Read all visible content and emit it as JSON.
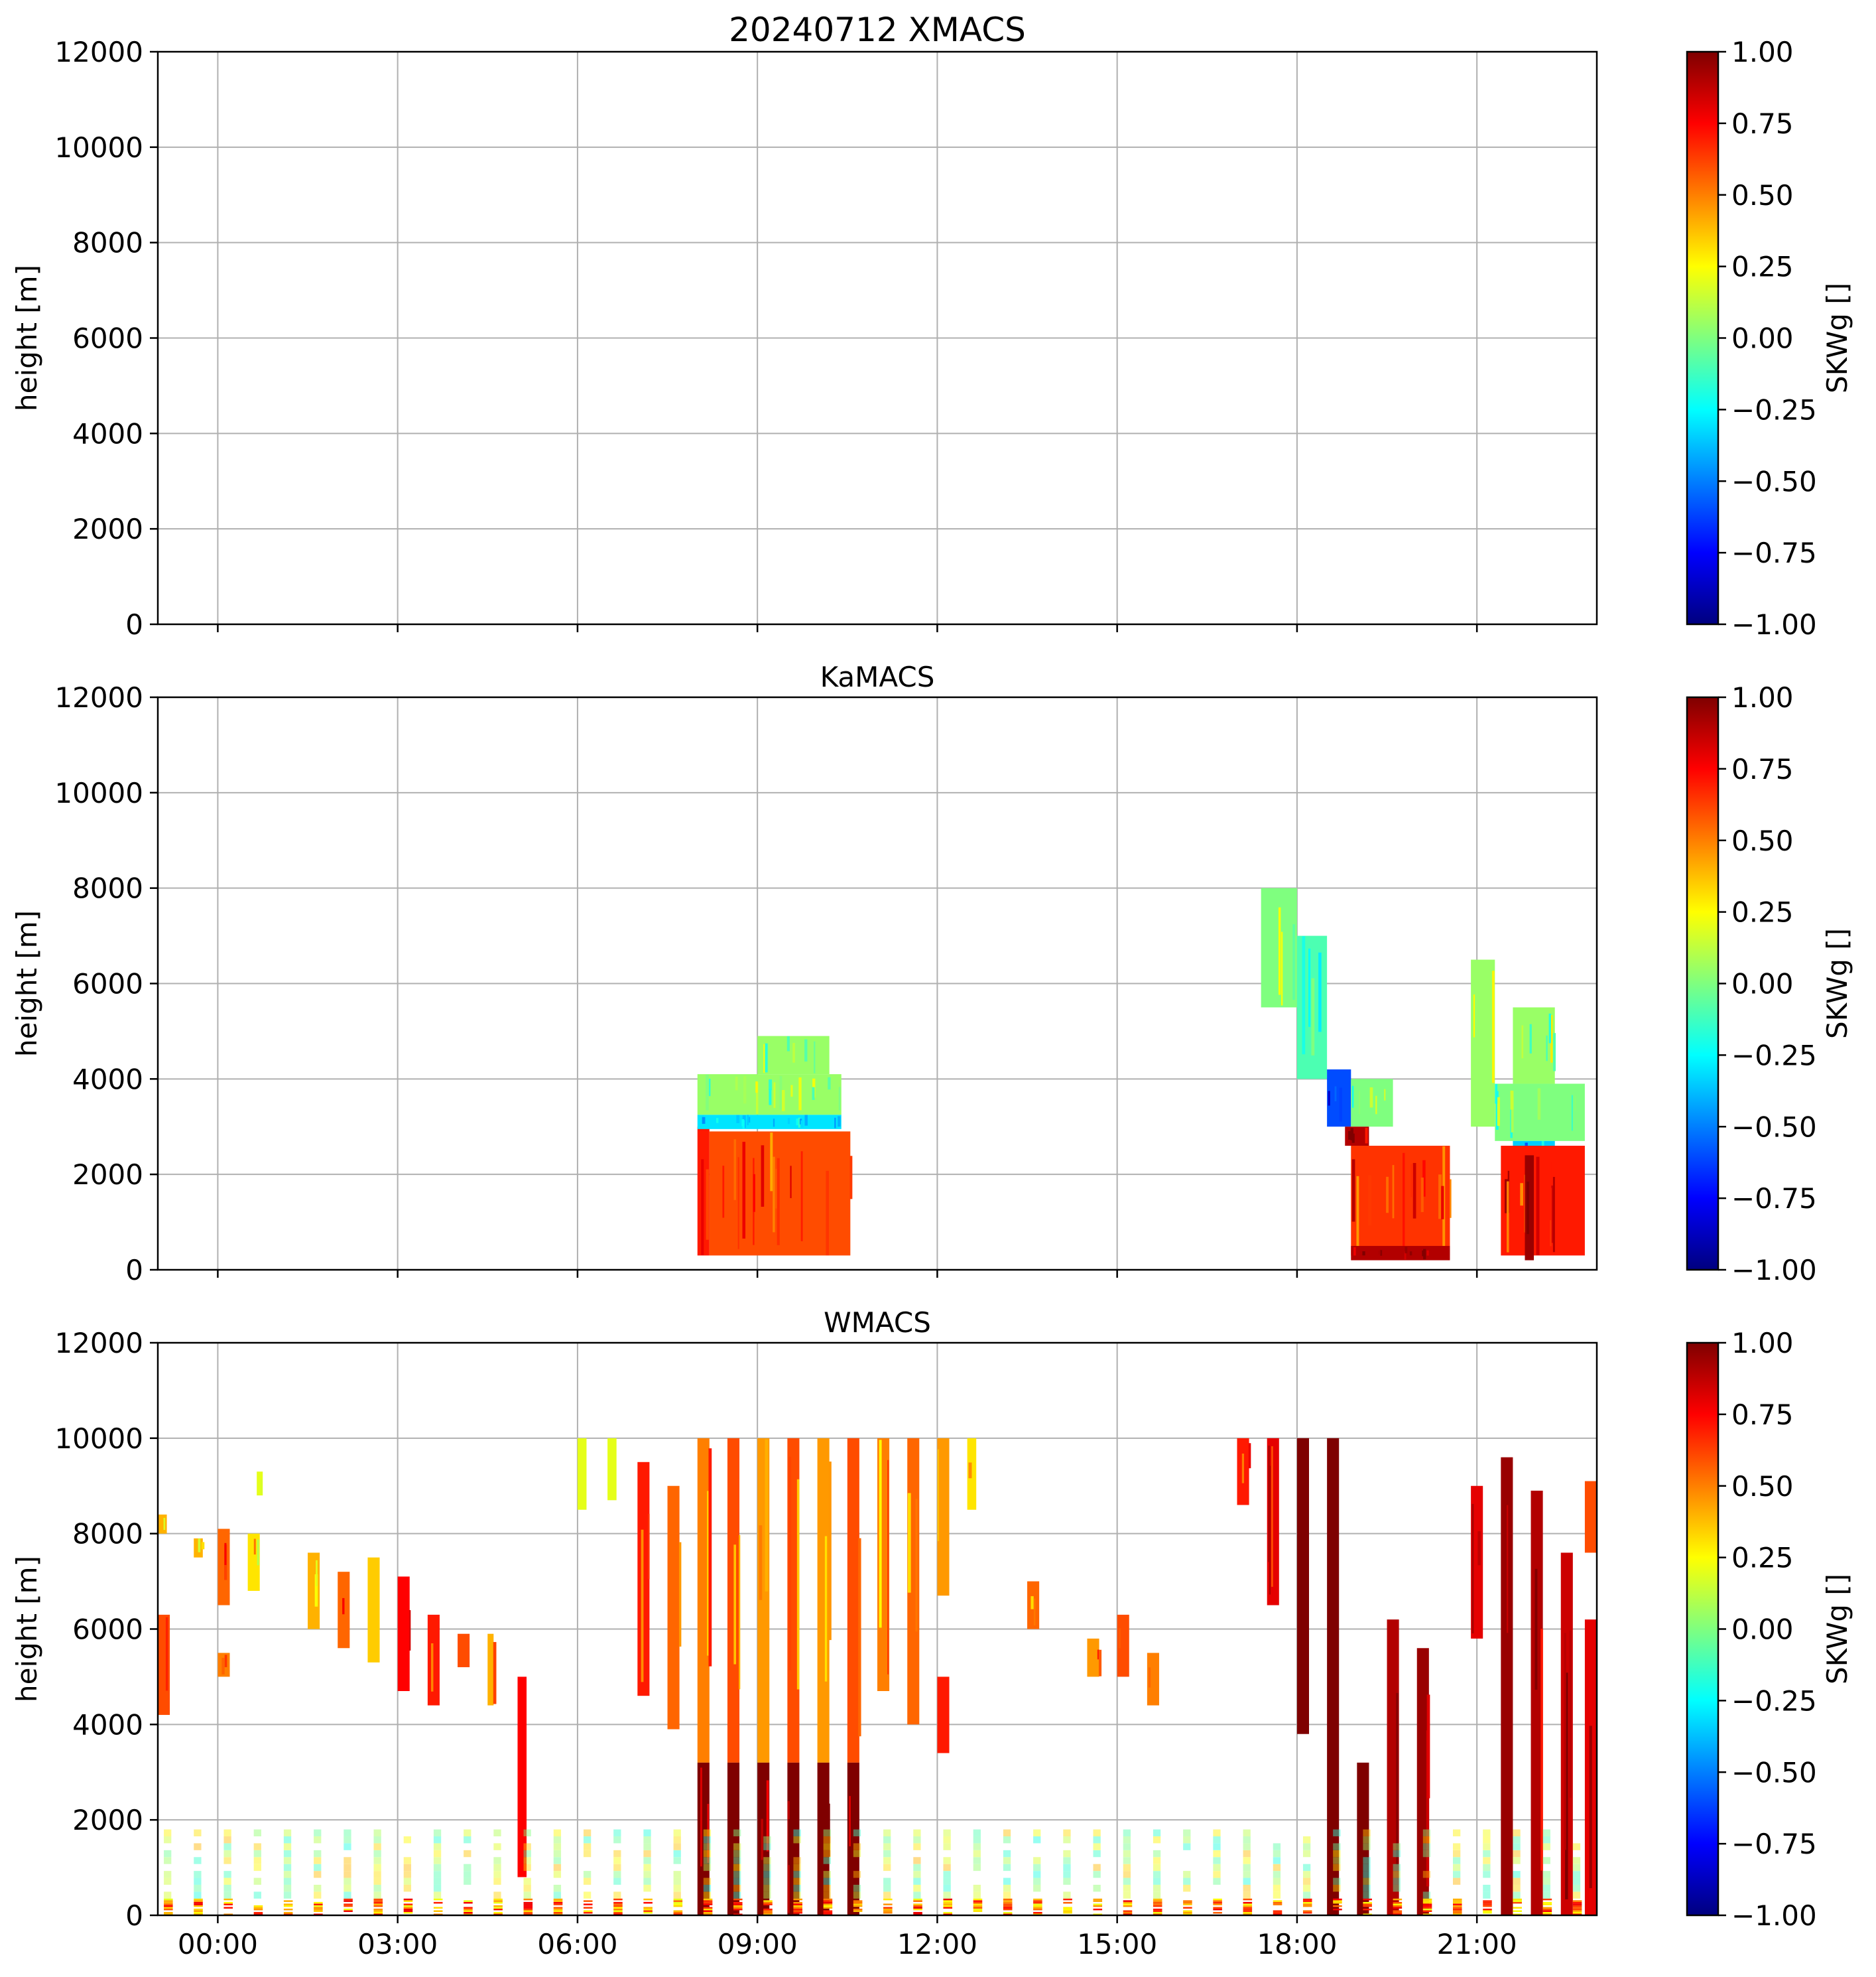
{
  "figure": {
    "title": "20240712 XMACS"
  },
  "colormap": {
    "name": "jet",
    "stops": [
      "#00007f",
      "#0000ff",
      "#007fff",
      "#00ffff",
      "#7fff7f",
      "#ffff00",
      "#ff7f00",
      "#ff0000",
      "#7f0000"
    ]
  },
  "chart_data": [
    {
      "type": "heatmap",
      "title": "20240712 XMACS",
      "ylabel": "height [m]",
      "xlabel": "",
      "x_range_hours": [
        -1.0,
        23.0
      ],
      "ylim": [
        0,
        12000
      ],
      "yticks": [
        0,
        2000,
        4000,
        6000,
        8000,
        10000,
        12000
      ],
      "xticks": [
        "00:00",
        "03:00",
        "06:00",
        "09:00",
        "12:00",
        "15:00",
        "18:00",
        "21:00"
      ],
      "xtick_labels_shown": false,
      "grid": true,
      "colorbar": {
        "label": "SKWg []",
        "range": [
          -1.0,
          1.0
        ],
        "ticks": [
          "1.00",
          "0.75",
          "0.50",
          "0.25",
          "0.00",
          "−0.25",
          "−0.50",
          "−0.75",
          "−1.00"
        ]
      },
      "regions": []
    },
    {
      "type": "heatmap",
      "title": "KaMACS",
      "ylabel": "height [m]",
      "xlabel": "",
      "x_range_hours": [
        -1.0,
        23.0
      ],
      "ylim": [
        0,
        12000
      ],
      "yticks": [
        0,
        2000,
        4000,
        6000,
        8000,
        10000,
        12000
      ],
      "xticks": [
        "00:00",
        "03:00",
        "06:00",
        "09:00",
        "12:00",
        "15:00",
        "18:00",
        "21:00"
      ],
      "xtick_labels_shown": false,
      "grid": true,
      "colorbar": {
        "label": "SKWg []",
        "range": [
          -1.0,
          1.0
        ],
        "ticks": [
          "1.00",
          "0.75",
          "0.50",
          "0.25",
          "0.00",
          "−0.25",
          "−0.50",
          "−0.75",
          "−1.00"
        ]
      },
      "regions": [
        {
          "t0": 8.0,
          "t1": 8.2,
          "h0": 300,
          "h1": 3000,
          "value": 0.7
        },
        {
          "t0": 8.2,
          "t1": 10.55,
          "h0": 300,
          "h1": 2900,
          "value": 0.6
        },
        {
          "t0": 8.0,
          "t1": 10.4,
          "h0": 2950,
          "h1": 3250,
          "value": -0.3
        },
        {
          "t0": 8.0,
          "t1": 10.4,
          "h0": 3250,
          "h1": 4100,
          "value": 0.05
        },
        {
          "t0": 9.0,
          "t1": 10.2,
          "h0": 4100,
          "h1": 4900,
          "value": 0.05
        },
        {
          "t0": 17.4,
          "t1": 18.0,
          "h0": 5500,
          "h1": 8000,
          "value": 0.0
        },
        {
          "t0": 18.0,
          "t1": 18.5,
          "h0": 4000,
          "h1": 7000,
          "value": -0.1
        },
        {
          "t0": 18.5,
          "t1": 18.9,
          "h0": 3000,
          "h1": 4200,
          "value": -0.6
        },
        {
          "t0": 18.9,
          "t1": 19.6,
          "h0": 3000,
          "h1": 4000,
          "value": 0.0
        },
        {
          "t0": 18.8,
          "t1": 19.2,
          "h0": 2600,
          "h1": 3000,
          "value": 0.9
        },
        {
          "t0": 18.9,
          "t1": 20.55,
          "h0": 300,
          "h1": 2600,
          "value": 0.65
        },
        {
          "t0": 18.9,
          "t1": 20.55,
          "h0": 200,
          "h1": 500,
          "value": 0.9
        },
        {
          "t0": 20.9,
          "t1": 21.3,
          "h0": 3000,
          "h1": 6500,
          "value": 0.05
        },
        {
          "t0": 21.3,
          "t1": 22.8,
          "h0": 2700,
          "h1": 3900,
          "value": 0.0
        },
        {
          "t0": 21.6,
          "t1": 22.3,
          "h0": 3900,
          "h1": 5500,
          "value": 0.05
        },
        {
          "t0": 21.6,
          "t1": 22.3,
          "h0": 2400,
          "h1": 2700,
          "value": -0.35
        },
        {
          "t0": 21.4,
          "t1": 22.8,
          "h0": 300,
          "h1": 2600,
          "value": 0.7
        },
        {
          "t0": 21.8,
          "t1": 21.95,
          "h0": 200,
          "h1": 2400,
          "value": 0.95
        }
      ]
    },
    {
      "type": "heatmap",
      "title": "WMACS",
      "ylabel": "height [m]",
      "xlabel": "",
      "x_range_hours": [
        -1.0,
        23.0
      ],
      "ylim": [
        0,
        12000
      ],
      "yticks": [
        0,
        2000,
        4000,
        6000,
        8000,
        10000,
        12000
      ],
      "xticks": [
        "00:00",
        "03:00",
        "06:00",
        "09:00",
        "12:00",
        "15:00",
        "18:00",
        "21:00"
      ],
      "xtick_labels_shown": true,
      "grid": true,
      "colorbar": {
        "label": "SKWg []",
        "range": [
          -1.0,
          1.0
        ],
        "ticks": [
          "1.00",
          "0.75",
          "0.50",
          "0.25",
          "0.00",
          "−0.25",
          "−0.50",
          "−0.75",
          "−1.00"
        ]
      },
      "regions": [
        {
          "t0": -1.0,
          "t1": -0.8,
          "h0": 4200,
          "h1": 6300,
          "value": 0.6
        },
        {
          "t0": -1.0,
          "t1": -0.85,
          "h0": 8000,
          "h1": 8400,
          "value": 0.4
        },
        {
          "t0": -0.4,
          "t1": -0.25,
          "h0": 7500,
          "h1": 7900,
          "value": 0.4
        },
        {
          "t0": 0.0,
          "t1": 0.2,
          "h0": 6500,
          "h1": 8100,
          "value": 0.55
        },
        {
          "t0": 0.0,
          "t1": 0.2,
          "h0": 5000,
          "h1": 5500,
          "value": 0.5
        },
        {
          "t0": 0.5,
          "t1": 0.7,
          "h0": 6800,
          "h1": 8000,
          "value": 0.3
        },
        {
          "t0": 0.65,
          "t1": 0.75,
          "h0": 8800,
          "h1": 9300,
          "value": 0.2
        },
        {
          "t0": 1.5,
          "t1": 1.7,
          "h0": 6000,
          "h1": 7600,
          "value": 0.4
        },
        {
          "t0": 2.0,
          "t1": 2.2,
          "h0": 5600,
          "h1": 7200,
          "value": 0.55
        },
        {
          "t0": 2.5,
          "t1": 2.7,
          "h0": 5300,
          "h1": 7500,
          "value": 0.35
        },
        {
          "t0": 3.0,
          "t1": 3.2,
          "h0": 4700,
          "h1": 7100,
          "value": 0.75
        },
        {
          "t0": 3.5,
          "t1": 3.7,
          "h0": 4400,
          "h1": 6300,
          "value": 0.7
        },
        {
          "t0": 4.0,
          "t1": 4.2,
          "h0": 5200,
          "h1": 5900,
          "value": 0.6
        },
        {
          "t0": 4.5,
          "t1": 4.6,
          "h0": 4400,
          "h1": 5900,
          "value": 0.4
        },
        {
          "t0": 5.0,
          "t1": 5.15,
          "h0": 800,
          "h1": 5000,
          "value": 0.75
        },
        {
          "t0": 6.0,
          "t1": 6.15,
          "h0": 8500,
          "h1": 10000,
          "value": 0.2
        },
        {
          "t0": 6.5,
          "t1": 6.65,
          "h0": 8700,
          "h1": 10000,
          "value": 0.2
        },
        {
          "t0": 7.0,
          "t1": 7.2,
          "h0": 4600,
          "h1": 9500,
          "value": 0.7
        },
        {
          "t0": 7.5,
          "t1": 7.7,
          "h0": 3900,
          "h1": 9000,
          "value": 0.55
        },
        {
          "t0": 8.0,
          "t1": 8.2,
          "h0": 3200,
          "h1": 10000,
          "value": 0.5
        },
        {
          "t0": 8.0,
          "t1": 8.2,
          "h0": 0,
          "h1": 3200,
          "value": 1.0
        },
        {
          "t0": 8.5,
          "t1": 8.7,
          "h0": 3200,
          "h1": 10000,
          "value": 0.6
        },
        {
          "t0": 8.5,
          "t1": 8.7,
          "h0": 0,
          "h1": 3200,
          "value": 1.0
        },
        {
          "t0": 9.0,
          "t1": 9.2,
          "h0": 3200,
          "h1": 10000,
          "value": 0.45
        },
        {
          "t0": 9.0,
          "t1": 9.2,
          "h0": 0,
          "h1": 3200,
          "value": 1.0
        },
        {
          "t0": 9.5,
          "t1": 9.7,
          "h0": 3200,
          "h1": 10000,
          "value": 0.6
        },
        {
          "t0": 9.5,
          "t1": 9.7,
          "h0": 0,
          "h1": 3200,
          "value": 1.0
        },
        {
          "t0": 10.0,
          "t1": 10.2,
          "h0": 3200,
          "h1": 10000,
          "value": 0.45
        },
        {
          "t0": 10.0,
          "t1": 10.2,
          "h0": 0,
          "h1": 3200,
          "value": 1.0
        },
        {
          "t0": 10.5,
          "t1": 10.7,
          "h0": 3200,
          "h1": 10000,
          "value": 0.6
        },
        {
          "t0": 10.5,
          "t1": 10.7,
          "h0": 0,
          "h1": 3200,
          "value": 1.0
        },
        {
          "t0": 11.0,
          "t1": 11.2,
          "h0": 4700,
          "h1": 10000,
          "value": 0.5
        },
        {
          "t0": 11.5,
          "t1": 11.7,
          "h0": 4000,
          "h1": 10000,
          "value": 0.55
        },
        {
          "t0": 12.0,
          "t1": 12.2,
          "h0": 6700,
          "h1": 10000,
          "value": 0.45
        },
        {
          "t0": 12.0,
          "t1": 12.2,
          "h0": 3400,
          "h1": 5000,
          "value": 0.7
        },
        {
          "t0": 12.5,
          "t1": 12.65,
          "h0": 8500,
          "h1": 10000,
          "value": 0.3
        },
        {
          "t0": 13.5,
          "t1": 13.7,
          "h0": 6000,
          "h1": 7000,
          "value": 0.55
        },
        {
          "t0": 14.5,
          "t1": 14.7,
          "h0": 5000,
          "h1": 5800,
          "value": 0.45
        },
        {
          "t0": 15.0,
          "t1": 15.2,
          "h0": 5000,
          "h1": 6300,
          "value": 0.6
        },
        {
          "t0": 15.5,
          "t1": 15.7,
          "h0": 4400,
          "h1": 5500,
          "value": 0.5
        },
        {
          "t0": 17.0,
          "t1": 17.2,
          "h0": 8600,
          "h1": 10000,
          "value": 0.7
        },
        {
          "t0": 17.5,
          "t1": 17.7,
          "h0": 6500,
          "h1": 10000,
          "value": 0.8
        },
        {
          "t0": 18.0,
          "t1": 18.2,
          "h0": 3800,
          "h1": 10000,
          "value": 1.0
        },
        {
          "t0": 18.5,
          "t1": 18.7,
          "h0": 0,
          "h1": 10000,
          "value": 1.0
        },
        {
          "t0": 19.0,
          "t1": 19.2,
          "h0": 0,
          "h1": 3200,
          "value": 1.0
        },
        {
          "t0": 19.5,
          "t1": 19.7,
          "h0": 0,
          "h1": 6200,
          "value": 0.9
        },
        {
          "t0": 20.0,
          "t1": 20.2,
          "h0": 0,
          "h1": 5600,
          "value": 0.95
        },
        {
          "t0": 20.9,
          "t1": 21.1,
          "h0": 5800,
          "h1": 9000,
          "value": 0.8
        },
        {
          "t0": 21.4,
          "t1": 21.6,
          "h0": 0,
          "h1": 9600,
          "value": 0.95
        },
        {
          "t0": 21.9,
          "t1": 22.1,
          "h0": 0,
          "h1": 8900,
          "value": 0.9
        },
        {
          "t0": 22.4,
          "t1": 22.6,
          "h0": 0,
          "h1": 7600,
          "value": 0.85
        },
        {
          "t0": 22.8,
          "t1": 23.0,
          "h0": 0,
          "h1": 6200,
          "value": 0.8
        },
        {
          "t0": 22.8,
          "t1": 23.0,
          "h0": 7600,
          "h1": 9100,
          "value": 0.6
        },
        {
          "t0": -1.0,
          "t1": 23.0,
          "h0": 0,
          "h1": 350,
          "value": 0.5,
          "pattern": "stripes",
          "period": 0.5,
          "duty": 0.3
        },
        {
          "t0": -1.0,
          "t1": 23.0,
          "h0": 350,
          "h1": 1800,
          "value": 0.1,
          "pattern": "stripes",
          "period": 0.5,
          "duty": 0.25,
          "opacity": 0.45
        }
      ]
    }
  ]
}
